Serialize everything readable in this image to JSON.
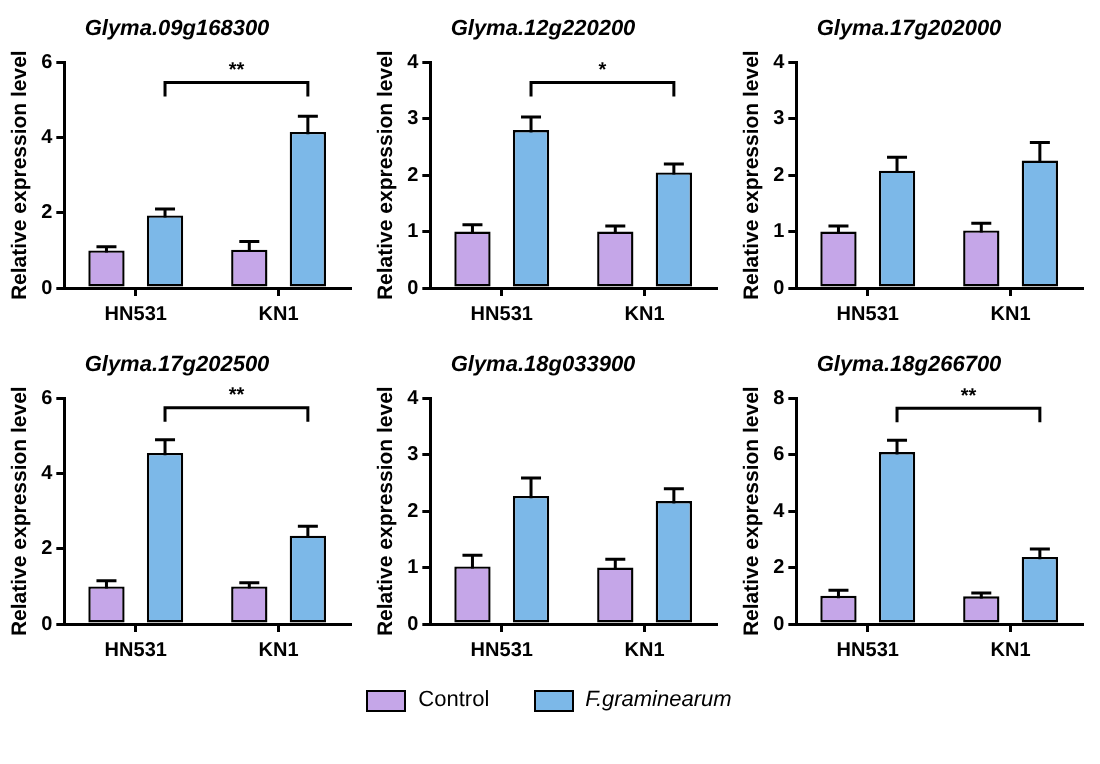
{
  "chart_data": [
    {
      "type": "bar",
      "title": "Glyma.09g168300",
      "ylabel": "Relative expression level",
      "categories": [
        "HN531",
        "KN1"
      ],
      "ylim": [
        0,
        6
      ],
      "yticks": [
        0,
        2,
        4,
        6
      ],
      "grid": false,
      "legend": false,
      "annotations": [
        "**"
      ],
      "series": [
        {
          "color": "#c5a6e8",
          "values": [
            1.0,
            1.02
          ],
          "errors": [
            0.1,
            0.22
          ]
        },
        {
          "color": "#7cb8e8",
          "values": [
            1.93,
            4.15
          ],
          "errors": [
            0.17,
            0.42
          ]
        }
      ]
    },
    {
      "type": "bar",
      "title": "Glyma.12g220200",
      "ylabel": "Relative expression level",
      "categories": [
        "HN531",
        "KN1"
      ],
      "ylim": [
        0,
        4
      ],
      "yticks": [
        0,
        1,
        2,
        3,
        4
      ],
      "grid": false,
      "legend": false,
      "annotations": [
        "*"
      ],
      "series": [
        {
          "color": "#c5a6e8",
          "values": [
            1.0,
            1.0
          ],
          "errors": [
            0.12,
            0.1
          ]
        },
        {
          "color": "#7cb8e8",
          "values": [
            2.8,
            2.05
          ],
          "errors": [
            0.23,
            0.15
          ]
        }
      ]
    },
    {
      "type": "bar",
      "title": "Glyma.17g202000",
      "ylabel": "Relative expression level",
      "categories": [
        "HN531",
        "KN1"
      ],
      "ylim": [
        0,
        4
      ],
      "yticks": [
        0,
        1,
        2,
        3,
        4
      ],
      "grid": false,
      "legend": false,
      "series": [
        {
          "color": "#c5a6e8",
          "values": [
            1.0,
            1.02
          ],
          "errors": [
            0.1,
            0.13
          ]
        },
        {
          "color": "#7cb8e8",
          "values": [
            2.08,
            2.26
          ],
          "errors": [
            0.24,
            0.32
          ]
        }
      ]
    },
    {
      "type": "bar",
      "title": "Glyma.17g202500",
      "ylabel": "Relative expression level",
      "categories": [
        "HN531",
        "KN1"
      ],
      "ylim": [
        0,
        6
      ],
      "yticks": [
        0,
        2,
        4,
        6
      ],
      "grid": false,
      "legend": false,
      "annotations": [
        "**"
      ],
      "series": [
        {
          "color": "#c5a6e8",
          "values": [
            1.0,
            1.0
          ],
          "errors": [
            0.15,
            0.1
          ]
        },
        {
          "color": "#7cb8e8",
          "values": [
            4.55,
            2.35
          ],
          "errors": [
            0.35,
            0.25
          ]
        }
      ]
    },
    {
      "type": "bar",
      "title": "Glyma.18g033900",
      "ylabel": "Relative expression level",
      "categories": [
        "HN531",
        "KN1"
      ],
      "ylim": [
        0,
        4
      ],
      "yticks": [
        0,
        1,
        2,
        3,
        4
      ],
      "grid": false,
      "legend": "bottom",
      "series": [
        {
          "name": "Control",
          "color": "#c5a6e8",
          "values": [
            1.02,
            1.0
          ],
          "errors": [
            0.2,
            0.15
          ]
        },
        {
          "name": "F.graminearum",
          "color": "#7cb8e8",
          "values": [
            2.27,
            2.18
          ],
          "errors": [
            0.32,
            0.22
          ]
        }
      ]
    },
    {
      "type": "bar",
      "title": "Glyma.18g266700",
      "ylabel": "Relative expression level",
      "categories": [
        "HN531",
        "KN1"
      ],
      "ylim": [
        0,
        8
      ],
      "yticks": [
        0,
        2,
        4,
        6,
        8
      ],
      "grid": false,
      "legend": false,
      "annotations": [
        "**"
      ],
      "series": [
        {
          "color": "#c5a6e8",
          "values": [
            1.0,
            0.98
          ],
          "errors": [
            0.2,
            0.12
          ]
        },
        {
          "color": "#7cb8e8",
          "values": [
            6.1,
            2.38
          ],
          "errors": [
            0.42,
            0.28
          ]
        }
      ]
    }
  ]
}
